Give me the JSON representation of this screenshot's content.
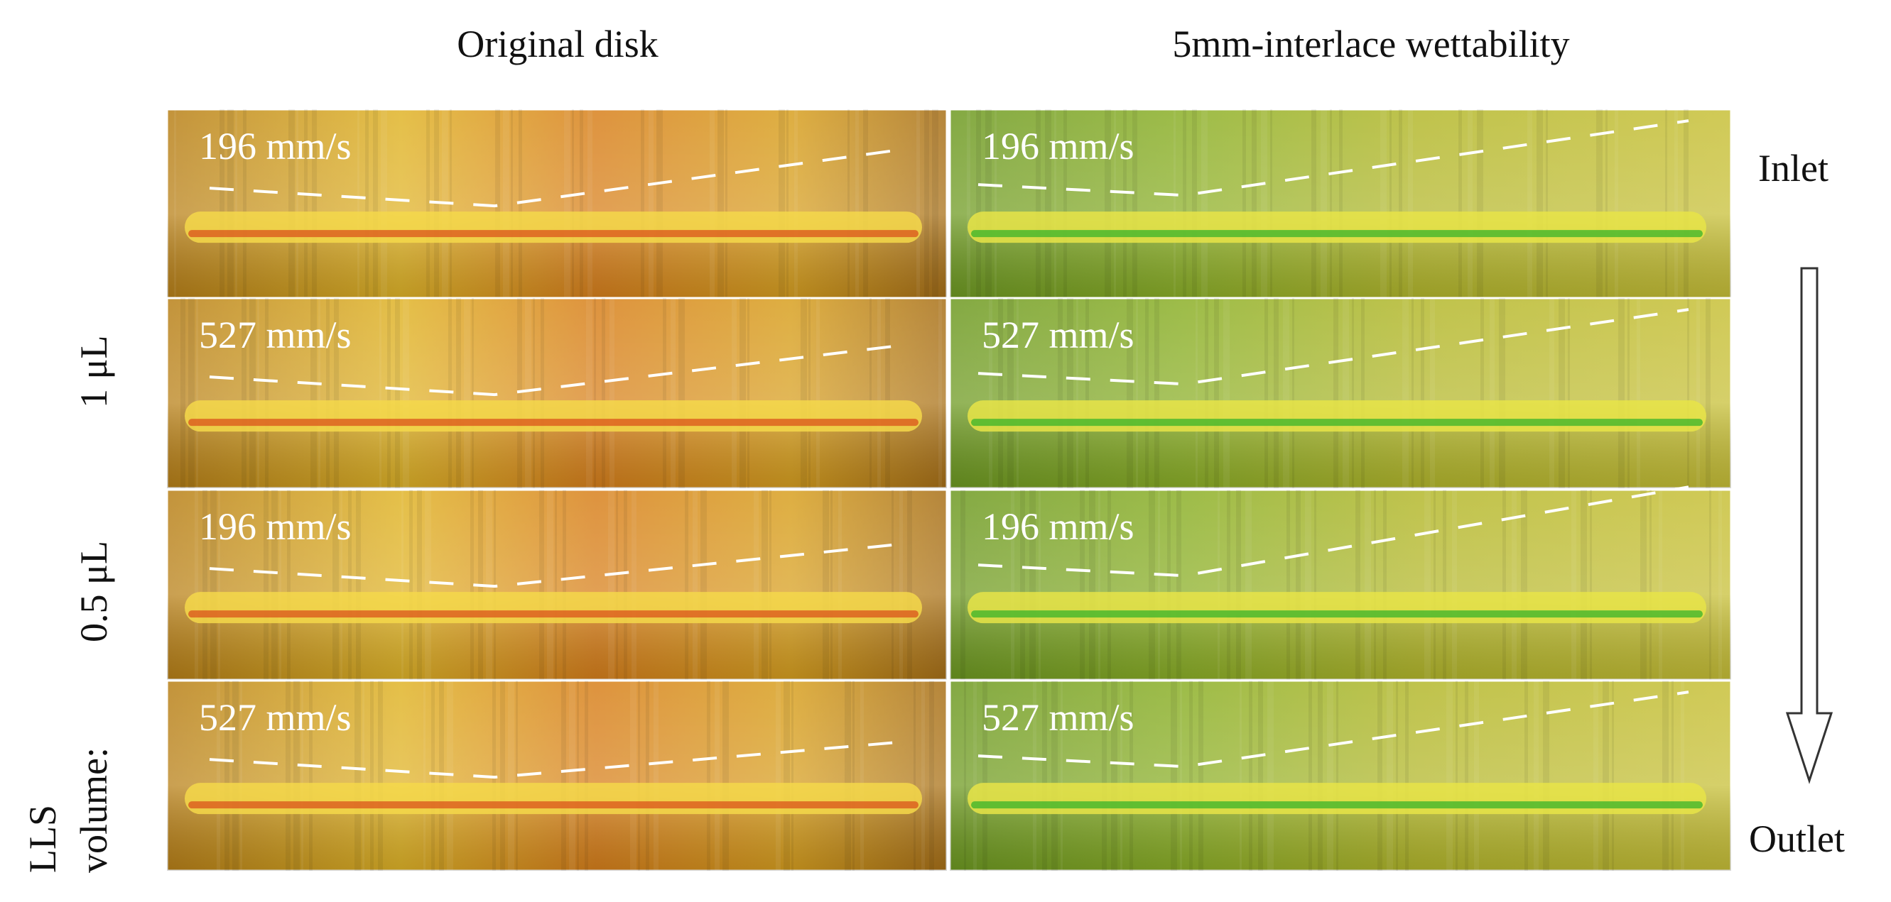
{
  "columns": [
    "Original disk",
    "5mm-interlace wettability"
  ],
  "panels": [
    [
      "196 mm/s",
      "196 mm/s"
    ],
    [
      "527 mm/s",
      "527 mm/s"
    ],
    [
      "196 mm/s",
      "196 mm/s"
    ],
    [
      "527 mm/s",
      "527 mm/s"
    ]
  ],
  "flow_labels": {
    "inlet": "Inlet",
    "outlet": "Outlet"
  },
  "volume_label": {
    "line1": "LLS",
    "line2": "volume:",
    "volumes": [
      "1 μL",
      "0.5 μL"
    ]
  }
}
